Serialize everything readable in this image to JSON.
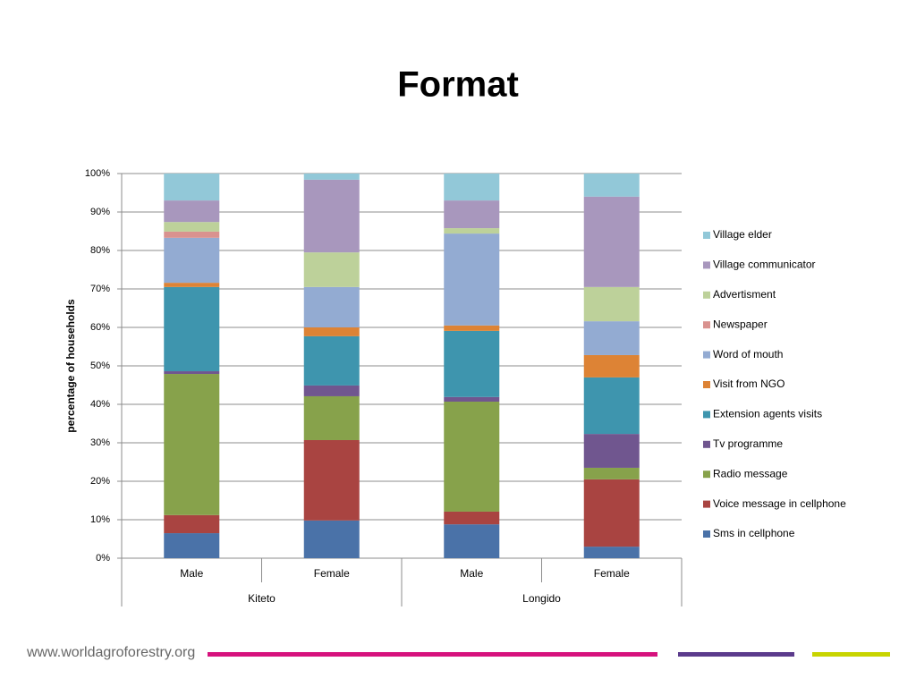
{
  "chart_data": {
    "type": "stacked_bar",
    "title": "Format",
    "ylabel": "percentage of households",
    "categories": [
      "Male",
      "Female",
      "Male",
      "Female"
    ],
    "groups": [
      "Kiteto",
      "Longido"
    ],
    "ylim": [
      0,
      100
    ],
    "yticks": [
      {
        "value": 0,
        "label": "0%"
      },
      {
        "value": 10,
        "label": "10%"
      },
      {
        "value": 20,
        "label": "20%"
      },
      {
        "value": 30,
        "label": "30%"
      },
      {
        "value": 40,
        "label": "40%"
      },
      {
        "value": 50,
        "label": "50%"
      },
      {
        "value": 60,
        "label": "60%"
      },
      {
        "value": 70,
        "label": "70%"
      },
      {
        "value": 80,
        "label": "80%"
      },
      {
        "value": 90,
        "label": "90%"
      },
      {
        "value": 100,
        "label": "100%"
      }
    ],
    "grid": true,
    "legend": "right",
    "series": [
      {
        "name": "Sms in cellphone",
        "color": "#4a72a8",
        "values": [
          6.5,
          9.8,
          8.8,
          3.0
        ]
      },
      {
        "name": "Voice message in cellphone",
        "color": "#a94441",
        "values": [
          4.7,
          20.9,
          3.3,
          17.5
        ]
      },
      {
        "name": "Radio message",
        "color": "#87a24b",
        "values": [
          36.7,
          11.4,
          28.6,
          3.0
        ]
      },
      {
        "name": "Tv programme",
        "color": "#70568f",
        "values": [
          0.7,
          2.8,
          1.2,
          8.8
        ]
      },
      {
        "name": "Extension agents visits",
        "color": "#3e95ae",
        "values": [
          21.9,
          12.8,
          17.2,
          14.7
        ]
      },
      {
        "name": "Visit from NGO",
        "color": "#dd8335",
        "values": [
          1.1,
          2.3,
          1.4,
          5.8
        ]
      },
      {
        "name": "Word of mouth",
        "color": "#93abd2",
        "values": [
          11.7,
          10.5,
          23.9,
          8.8
        ]
      },
      {
        "name": "Newspaper",
        "color": "#d9928f",
        "values": [
          1.6,
          0,
          0,
          0
        ]
      },
      {
        "name": "Advertisment",
        "color": "#bdd19a",
        "values": [
          2.5,
          9.0,
          1.4,
          8.9
        ]
      },
      {
        "name": "Village communicator",
        "color": "#a897bd",
        "values": [
          5.6,
          18.9,
          7.2,
          23.5
        ]
      },
      {
        "name": "Village elder",
        "color": "#92c8d8",
        "values": [
          7.0,
          1.6,
          7.0,
          6.0
        ]
      }
    ]
  },
  "footer": {
    "url": "www.worldagroforestry.org"
  }
}
